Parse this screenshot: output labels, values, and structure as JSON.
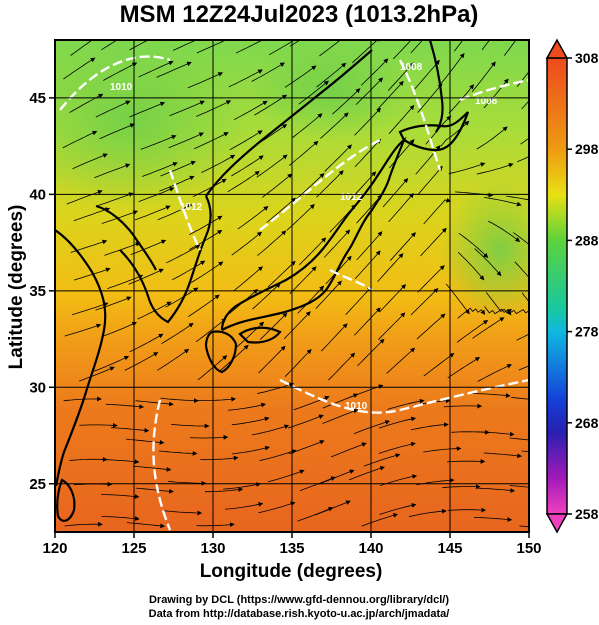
{
  "title": "MSM 12Z24Jul2023 (1013.2hPa)",
  "xaxis": {
    "label": "Longitude (degrees)",
    "ticks": [
      "120",
      "125",
      "130",
      "135",
      "140",
      "145",
      "150"
    ]
  },
  "yaxis": {
    "label": "Latitude  (degrees)",
    "ticks": [
      "25",
      "30",
      "35",
      "40",
      "45"
    ]
  },
  "colorbar": {
    "ticks": [
      "308",
      "298",
      "288",
      "278",
      "268",
      "258"
    ]
  },
  "credits": {
    "line1": "Drawing by DCL (https://www.gfd-dennou.org/library/dcl/)",
    "line2": "Data from http://database.rish.kyoto-u.ac.jp/arch/jmadata/"
  },
  "isobar_labels": [
    "1010",
    "1012",
    "1012",
    "1008",
    "1008",
    "1010"
  ],
  "colors": {
    "warm": "#e8641e",
    "mid": "#f0c814",
    "cool": "#6fd04a",
    "isobar": "#ffffff",
    "land": "#000000"
  }
}
